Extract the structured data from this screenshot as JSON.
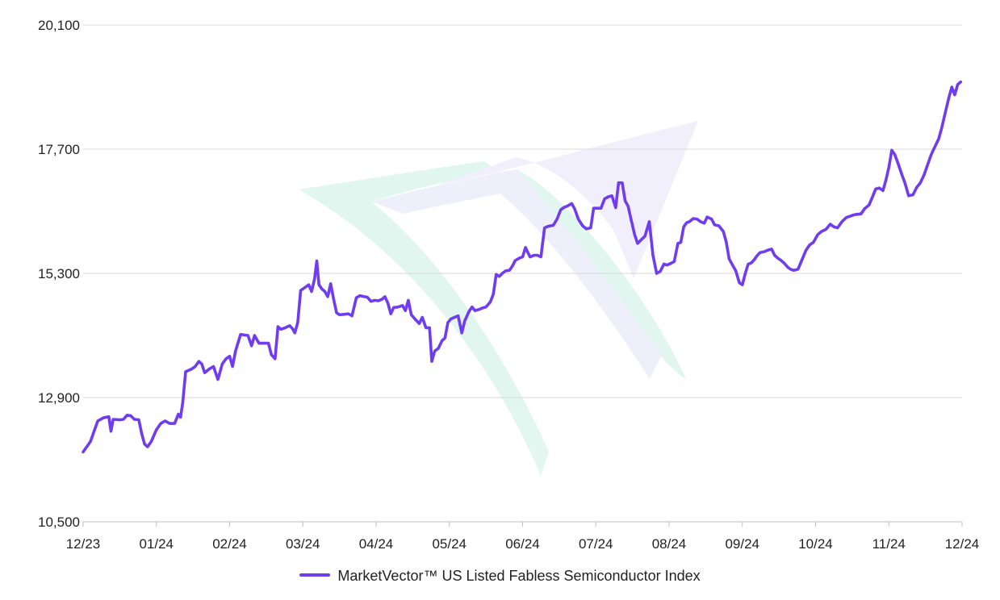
{
  "chart_data": {
    "type": "line",
    "title": "",
    "xlabel": "",
    "ylabel": "",
    "x_tick_labels": [
      "12/23",
      "01/24",
      "02/24",
      "03/24",
      "04/24",
      "05/24",
      "06/24",
      "07/24",
      "08/24",
      "09/24",
      "10/24",
      "11/24",
      "12/24"
    ],
    "y_tick_labels": [
      "10,500",
      "12,900",
      "15,300",
      "17,700",
      "20,100"
    ],
    "y_ticks": [
      10500,
      12900,
      15300,
      17700,
      20100
    ],
    "ylim": [
      10500,
      20100
    ],
    "xlim": [
      0,
      12
    ],
    "grid": "horizontal",
    "legend_position": "bottom-center",
    "series": [
      {
        "name": "MarketVector™ US Listed Fabless Semiconductor Index",
        "color": "#6f3cf2",
        "points": [
          [
            0.0,
            11850
          ],
          [
            0.05,
            11950
          ],
          [
            0.1,
            12050
          ],
          [
            0.15,
            12250
          ],
          [
            0.2,
            12450
          ],
          [
            0.28,
            12510
          ],
          [
            0.35,
            12530
          ],
          [
            0.38,
            12250
          ],
          [
            0.41,
            12480
          ],
          [
            0.5,
            12470
          ],
          [
            0.55,
            12480
          ],
          [
            0.6,
            12560
          ],
          [
            0.65,
            12550
          ],
          [
            0.7,
            12480
          ],
          [
            0.76,
            12470
          ],
          [
            0.8,
            12200
          ],
          [
            0.84,
            12000
          ],
          [
            0.88,
            11950
          ],
          [
            0.93,
            12050
          ],
          [
            1.0,
            12280
          ],
          [
            1.06,
            12400
          ],
          [
            1.12,
            12450
          ],
          [
            1.18,
            12400
          ],
          [
            1.25,
            12400
          ],
          [
            1.3,
            12580
          ],
          [
            1.33,
            12520
          ],
          [
            1.36,
            12800
          ],
          [
            1.4,
            13400
          ],
          [
            1.48,
            13450
          ],
          [
            1.53,
            13500
          ],
          [
            1.58,
            13600
          ],
          [
            1.62,
            13550
          ],
          [
            1.66,
            13380
          ],
          [
            1.72,
            13450
          ],
          [
            1.78,
            13500
          ],
          [
            1.84,
            13250
          ],
          [
            1.9,
            13550
          ],
          [
            1.95,
            13650
          ],
          [
            2.0,
            13700
          ],
          [
            2.04,
            13500
          ],
          [
            2.08,
            13800
          ],
          [
            2.15,
            14120
          ],
          [
            2.2,
            14110
          ],
          [
            2.25,
            14100
          ],
          [
            2.3,
            13900
          ],
          [
            2.34,
            14100
          ],
          [
            2.4,
            13950
          ],
          [
            2.48,
            13950
          ],
          [
            2.53,
            13950
          ],
          [
            2.57,
            13730
          ],
          [
            2.62,
            13650
          ],
          [
            2.66,
            14270
          ],
          [
            2.7,
            14220
          ],
          [
            2.76,
            14250
          ],
          [
            2.82,
            14290
          ],
          [
            2.86,
            14230
          ],
          [
            2.89,
            14150
          ],
          [
            2.93,
            14350
          ],
          [
            2.97,
            14970
          ],
          [
            3.03,
            15030
          ],
          [
            3.08,
            15080
          ],
          [
            3.12,
            14950
          ],
          [
            3.16,
            15200
          ],
          [
            3.19,
            15540
          ],
          [
            3.22,
            15080
          ],
          [
            3.26,
            15000
          ],
          [
            3.3,
            14950
          ],
          [
            3.34,
            14850
          ],
          [
            3.38,
            15100
          ],
          [
            3.42,
            14800
          ],
          [
            3.46,
            14540
          ],
          [
            3.5,
            14500
          ],
          [
            3.57,
            14510
          ],
          [
            3.62,
            14520
          ],
          [
            3.67,
            14480
          ],
          [
            3.73,
            14830
          ],
          [
            3.78,
            14870
          ],
          [
            3.84,
            14850
          ],
          [
            3.88,
            14840
          ],
          [
            3.93,
            14760
          ],
          [
            3.98,
            14780
          ],
          [
            4.03,
            14770
          ],
          [
            4.08,
            14800
          ],
          [
            4.12,
            14850
          ],
          [
            4.16,
            14730
          ],
          [
            4.2,
            14520
          ],
          [
            4.24,
            14640
          ],
          [
            4.3,
            14650
          ],
          [
            4.36,
            14680
          ],
          [
            4.4,
            14580
          ],
          [
            4.44,
            14780
          ],
          [
            4.48,
            14500
          ],
          [
            4.53,
            14420
          ],
          [
            4.59,
            14330
          ],
          [
            4.63,
            14450
          ],
          [
            4.68,
            14250
          ],
          [
            4.73,
            14250
          ],
          [
            4.76,
            13600
          ],
          [
            4.8,
            13800
          ],
          [
            4.85,
            13850
          ],
          [
            4.9,
            14000
          ],
          [
            4.94,
            14050
          ],
          [
            4.98,
            14350
          ],
          [
            5.02,
            14420
          ],
          [
            5.07,
            14450
          ],
          [
            5.12,
            14480
          ],
          [
            5.17,
            14150
          ],
          [
            5.21,
            14380
          ],
          [
            5.27,
            14570
          ],
          [
            5.31,
            14650
          ],
          [
            5.35,
            14580
          ],
          [
            5.4,
            14600
          ],
          [
            5.45,
            14630
          ],
          [
            5.5,
            14650
          ],
          [
            5.56,
            14750
          ],
          [
            5.6,
            14900
          ],
          [
            5.64,
            15280
          ],
          [
            5.68,
            15240
          ],
          [
            5.73,
            15310
          ],
          [
            5.77,
            15350
          ],
          [
            5.82,
            15360
          ],
          [
            5.86,
            15440
          ],
          [
            5.9,
            15550
          ],
          [
            5.96,
            15600
          ],
          [
            6.0,
            15620
          ],
          [
            6.04,
            15800
          ],
          [
            6.1,
            15620
          ],
          [
            6.16,
            15650
          ],
          [
            6.2,
            15650
          ],
          [
            6.25,
            15620
          ],
          [
            6.3,
            16180
          ],
          [
            6.35,
            16210
          ],
          [
            6.42,
            16230
          ],
          [
            6.47,
            16350
          ],
          [
            6.52,
            16530
          ],
          [
            6.57,
            16580
          ],
          [
            6.61,
            16600
          ],
          [
            6.67,
            16650
          ],
          [
            6.71,
            16550
          ],
          [
            6.76,
            16350
          ],
          [
            6.82,
            16220
          ],
          [
            6.87,
            16160
          ],
          [
            6.93,
            16180
          ],
          [
            6.97,
            16560
          ],
          [
            7.02,
            16560
          ],
          [
            7.07,
            16560
          ],
          [
            7.12,
            16740
          ],
          [
            7.17,
            16780
          ],
          [
            7.22,
            16800
          ],
          [
            7.27,
            16570
          ],
          [
            7.31,
            17050
          ],
          [
            7.36,
            17050
          ],
          [
            7.4,
            16700
          ],
          [
            7.44,
            16600
          ],
          [
            7.48,
            16350
          ],
          [
            7.53,
            16050
          ],
          [
            7.57,
            15880
          ],
          [
            7.62,
            15950
          ],
          [
            7.67,
            16020
          ],
          [
            7.73,
            16300
          ],
          [
            7.78,
            15650
          ],
          [
            7.83,
            15300
          ],
          [
            7.88,
            15340
          ],
          [
            7.93,
            15480
          ],
          [
            7.97,
            15460
          ],
          [
            8.02,
            15490
          ],
          [
            8.07,
            15530
          ],
          [
            8.12,
            15880
          ],
          [
            8.16,
            15900
          ],
          [
            8.2,
            16200
          ],
          [
            8.24,
            16280
          ],
          [
            8.28,
            16300
          ],
          [
            8.33,
            16360
          ],
          [
            8.38,
            16350
          ],
          [
            8.43,
            16300
          ],
          [
            8.48,
            16270
          ],
          [
            8.52,
            16390
          ],
          [
            8.58,
            16350
          ],
          [
            8.62,
            16240
          ],
          [
            8.68,
            16220
          ],
          [
            8.74,
            16110
          ],
          [
            8.78,
            15910
          ],
          [
            8.82,
            15580
          ],
          [
            8.87,
            15450
          ],
          [
            8.91,
            15350
          ],
          [
            8.96,
            15120
          ],
          [
            9.0,
            15080
          ],
          [
            9.04,
            15300
          ],
          [
            9.08,
            15480
          ],
          [
            9.12,
            15500
          ],
          [
            9.16,
            15560
          ],
          [
            9.2,
            15640
          ],
          [
            9.24,
            15700
          ],
          [
            9.3,
            15720
          ],
          [
            9.35,
            15750
          ],
          [
            9.4,
            15770
          ],
          [
            9.44,
            15650
          ],
          [
            9.48,
            15600
          ],
          [
            9.53,
            15550
          ],
          [
            9.57,
            15500
          ],
          [
            9.62,
            15420
          ],
          [
            9.66,
            15380
          ],
          [
            9.7,
            15360
          ],
          [
            9.76,
            15380
          ],
          [
            9.81,
            15550
          ],
          [
            9.87,
            15750
          ],
          [
            9.92,
            15850
          ],
          [
            9.97,
            15900
          ],
          [
            10.03,
            16050
          ],
          [
            10.08,
            16110
          ],
          [
            10.14,
            16150
          ],
          [
            10.2,
            16250
          ],
          [
            10.25,
            16200
          ],
          [
            10.3,
            16180
          ],
          [
            10.36,
            16300
          ],
          [
            10.42,
            16380
          ],
          [
            10.48,
            16410
          ],
          [
            10.52,
            16430
          ],
          [
            10.56,
            16440
          ],
          [
            10.62,
            16450
          ],
          [
            10.67,
            16550
          ],
          [
            10.73,
            16620
          ],
          [
            10.78,
            16790
          ],
          [
            10.82,
            16930
          ],
          [
            10.87,
            16950
          ],
          [
            10.92,
            16900
          ],
          [
            10.96,
            17100
          ],
          [
            11.0,
            17350
          ],
          [
            11.04,
            17680
          ],
          [
            11.08,
            17600
          ],
          [
            11.12,
            17450
          ],
          [
            11.18,
            17200
          ],
          [
            11.22,
            17050
          ],
          [
            11.27,
            16800
          ],
          [
            11.33,
            16820
          ],
          [
            11.38,
            16960
          ],
          [
            11.43,
            17050
          ],
          [
            11.48,
            17200
          ],
          [
            11.53,
            17400
          ],
          [
            11.58,
            17600
          ],
          [
            11.63,
            17750
          ],
          [
            11.68,
            17900
          ],
          [
            11.72,
            18100
          ],
          [
            11.77,
            18400
          ],
          [
            11.82,
            18700
          ],
          [
            11.86,
            18900
          ],
          [
            11.9,
            18750
          ],
          [
            11.94,
            18950
          ],
          [
            11.98,
            19000
          ]
        ]
      }
    ]
  }
}
